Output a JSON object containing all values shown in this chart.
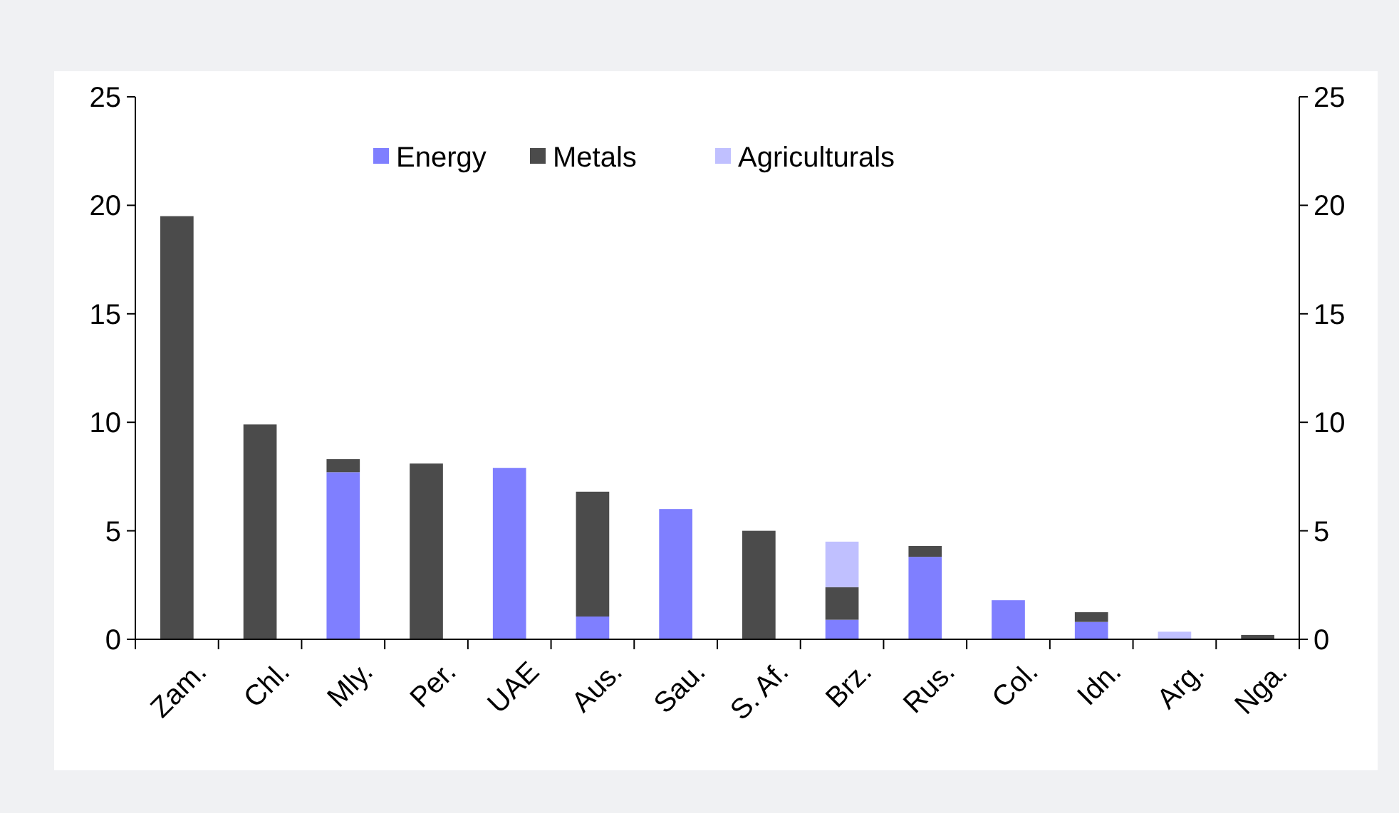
{
  "chart_data": {
    "type": "bar",
    "stacked": true,
    "categories": [
      "Zam.",
      "Chl.",
      "Mly.",
      "Per.",
      "UAE",
      "Aus.",
      "Sau.",
      "S. Af.",
      "Brz.",
      "Rus.",
      "Col.",
      "Idn.",
      "Arg.",
      "Nga."
    ],
    "series": [
      {
        "name": "Energy",
        "color": "#7f7fff",
        "values": [
          0,
          0,
          7.7,
          0,
          7.9,
          1.05,
          6.0,
          0,
          0.9,
          3.8,
          1.8,
          0.8,
          0,
          0
        ]
      },
      {
        "name": "Metals",
        "color": "#4b4b4b",
        "values": [
          19.5,
          9.9,
          0.6,
          8.1,
          0,
          5.75,
          0,
          5.0,
          1.5,
          0.5,
          0,
          0.45,
          0,
          0.2
        ]
      },
      {
        "name": "Agriculturals",
        "color": "#c0c0ff",
        "values": [
          0,
          0,
          0,
          0,
          0,
          0,
          0,
          0,
          2.1,
          0,
          0,
          0,
          0.35,
          0
        ]
      }
    ],
    "ylim": [
      0,
      25
    ],
    "yticks": [
      0,
      5,
      10,
      15,
      20,
      25
    ],
    "y2lim": [
      0,
      25
    ],
    "y2ticks": [
      0,
      5,
      10,
      15,
      20,
      25
    ],
    "legend": "top",
    "grid": false
  }
}
